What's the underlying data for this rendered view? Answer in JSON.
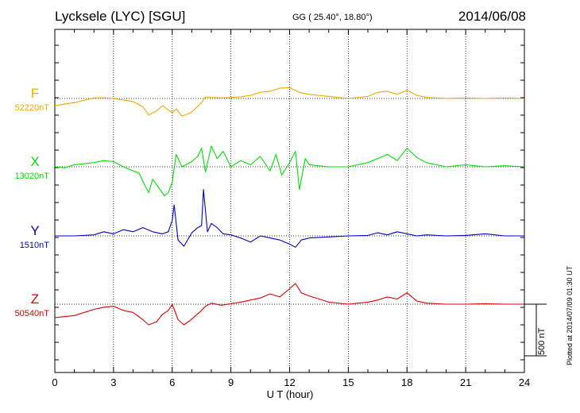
{
  "header": {
    "title": "Lycksele (LYC)  [SGU]",
    "coordinates": "GG ( 25.40°,  18.80°)",
    "date": "2014/06/08"
  },
  "footer": {
    "plotted_note": "Plotted at 2014/07/09 01:30 UT"
  },
  "colors": {
    "F": "#f0a800",
    "X": "#00e000",
    "Y": "#0000cc",
    "Z": "#e00000"
  },
  "chart_data": {
    "type": "line",
    "xlabel": "U T (hour)",
    "xlim": [
      0,
      24
    ],
    "x_ticks": [
      0,
      3,
      6,
      9,
      12,
      15,
      18,
      21,
      24
    ],
    "grid": true,
    "scale_bar": {
      "label": "500 nT",
      "value_nT": 500
    },
    "series": [
      {
        "name": "F",
        "baseline_label": "52220nT",
        "baseline_nT": 52220,
        "x": [
          0,
          1,
          2,
          2.5,
          3,
          4,
          4.5,
          4.8,
          5.2,
          5.5,
          5.8,
          6,
          6.2,
          6.5,
          6.8,
          7,
          7.5,
          7.7,
          8,
          8.5,
          9,
          9.5,
          10,
          10.5,
          11,
          11.5,
          12,
          12.5,
          13,
          14,
          15,
          16,
          16.5,
          17,
          17.5,
          18,
          18.5,
          19,
          20,
          21,
          22,
          23,
          24
        ],
        "y_offset_nT": [
          -70,
          -40,
          5,
          8,
          0,
          -30,
          -80,
          -160,
          -120,
          -70,
          -110,
          -140,
          -100,
          -170,
          -150,
          -130,
          -40,
          15,
          10,
          5,
          10,
          15,
          30,
          60,
          70,
          100,
          105,
          60,
          40,
          20,
          0,
          20,
          60,
          70,
          40,
          80,
          30,
          10,
          0,
          5,
          0,
          5,
          0
        ]
      },
      {
        "name": "X",
        "baseline_label": "13020nT",
        "baseline_nT": 13020,
        "x": [
          0,
          0.5,
          1,
          2,
          2.5,
          3,
          3.5,
          4,
          4.3,
          4.6,
          4.8,
          5,
          5.3,
          5.6,
          5.8,
          6,
          6.2,
          6.5,
          7,
          7.3,
          7.5,
          7.7,
          8,
          8.3,
          8.6,
          9,
          9.5,
          10,
          10.5,
          11,
          11.3,
          11.6,
          12,
          12.3,
          12.5,
          12.8,
          13,
          14,
          15,
          16,
          16.5,
          17,
          17.5,
          18,
          18.5,
          19,
          20,
          21,
          22,
          23,
          24
        ],
        "y_offset_nT": [
          0,
          -10,
          20,
          40,
          60,
          50,
          0,
          -40,
          -60,
          -180,
          -250,
          -120,
          -200,
          -280,
          -250,
          -150,
          120,
          0,
          50,
          100,
          180,
          -50,
          200,
          80,
          150,
          0,
          60,
          20,
          100,
          -40,
          120,
          -80,
          40,
          150,
          -220,
          80,
          20,
          0,
          0,
          40,
          80,
          120,
          60,
          180,
          90,
          40,
          0,
          20,
          0,
          10,
          0
        ]
      },
      {
        "name": "Y",
        "baseline_label": "1510nT",
        "baseline_nT": 1510,
        "x": [
          0,
          1,
          2,
          2.5,
          3,
          3.5,
          4,
          4.5,
          5,
          5.5,
          5.8,
          6,
          6.1,
          6.3,
          6.6,
          7,
          7.3,
          7.5,
          7.6,
          7.8,
          8,
          8.3,
          8.6,
          9,
          9.5,
          10,
          10.5,
          11,
          11.5,
          12,
          12.3,
          12.6,
          13,
          14,
          15,
          16,
          16.5,
          17,
          17.5,
          18,
          18.5,
          19,
          20,
          21,
          22,
          23,
          24
        ],
        "y_offset_nT": [
          0,
          0,
          10,
          40,
          20,
          60,
          40,
          80,
          40,
          20,
          40,
          150,
          300,
          -40,
          -100,
          30,
          80,
          100,
          450,
          40,
          120,
          80,
          20,
          10,
          -20,
          -60,
          0,
          -20,
          -40,
          -80,
          -110,
          -40,
          -20,
          -10,
          0,
          5,
          30,
          10,
          40,
          20,
          0,
          10,
          0,
          5,
          20,
          0,
          0
        ]
      },
      {
        "name": "Z",
        "baseline_label": "50540nT",
        "baseline_nT": 50540,
        "x": [
          0,
          1,
          2,
          2.5,
          3,
          3.5,
          4,
          4.5,
          4.8,
          5.2,
          5.5,
          5.8,
          6,
          6.3,
          6.6,
          6.9,
          7.2,
          7.5,
          7.7,
          8,
          8.5,
          9,
          9.5,
          10,
          10.5,
          11,
          11.5,
          12,
          12.3,
          12.6,
          13,
          14,
          15,
          16,
          16.5,
          17,
          17.5,
          18,
          18.5,
          19,
          20,
          21,
          22,
          23,
          24
        ],
        "y_offset_nT": [
          -130,
          -110,
          -50,
          -30,
          -20,
          -60,
          -80,
          -150,
          -200,
          -170,
          -100,
          -60,
          0,
          -150,
          -200,
          -160,
          -110,
          -60,
          -20,
          10,
          -10,
          5,
          20,
          40,
          60,
          100,
          70,
          150,
          200,
          110,
          80,
          20,
          0,
          20,
          40,
          70,
          50,
          110,
          30,
          10,
          0,
          0,
          5,
          0,
          0
        ]
      }
    ]
  }
}
